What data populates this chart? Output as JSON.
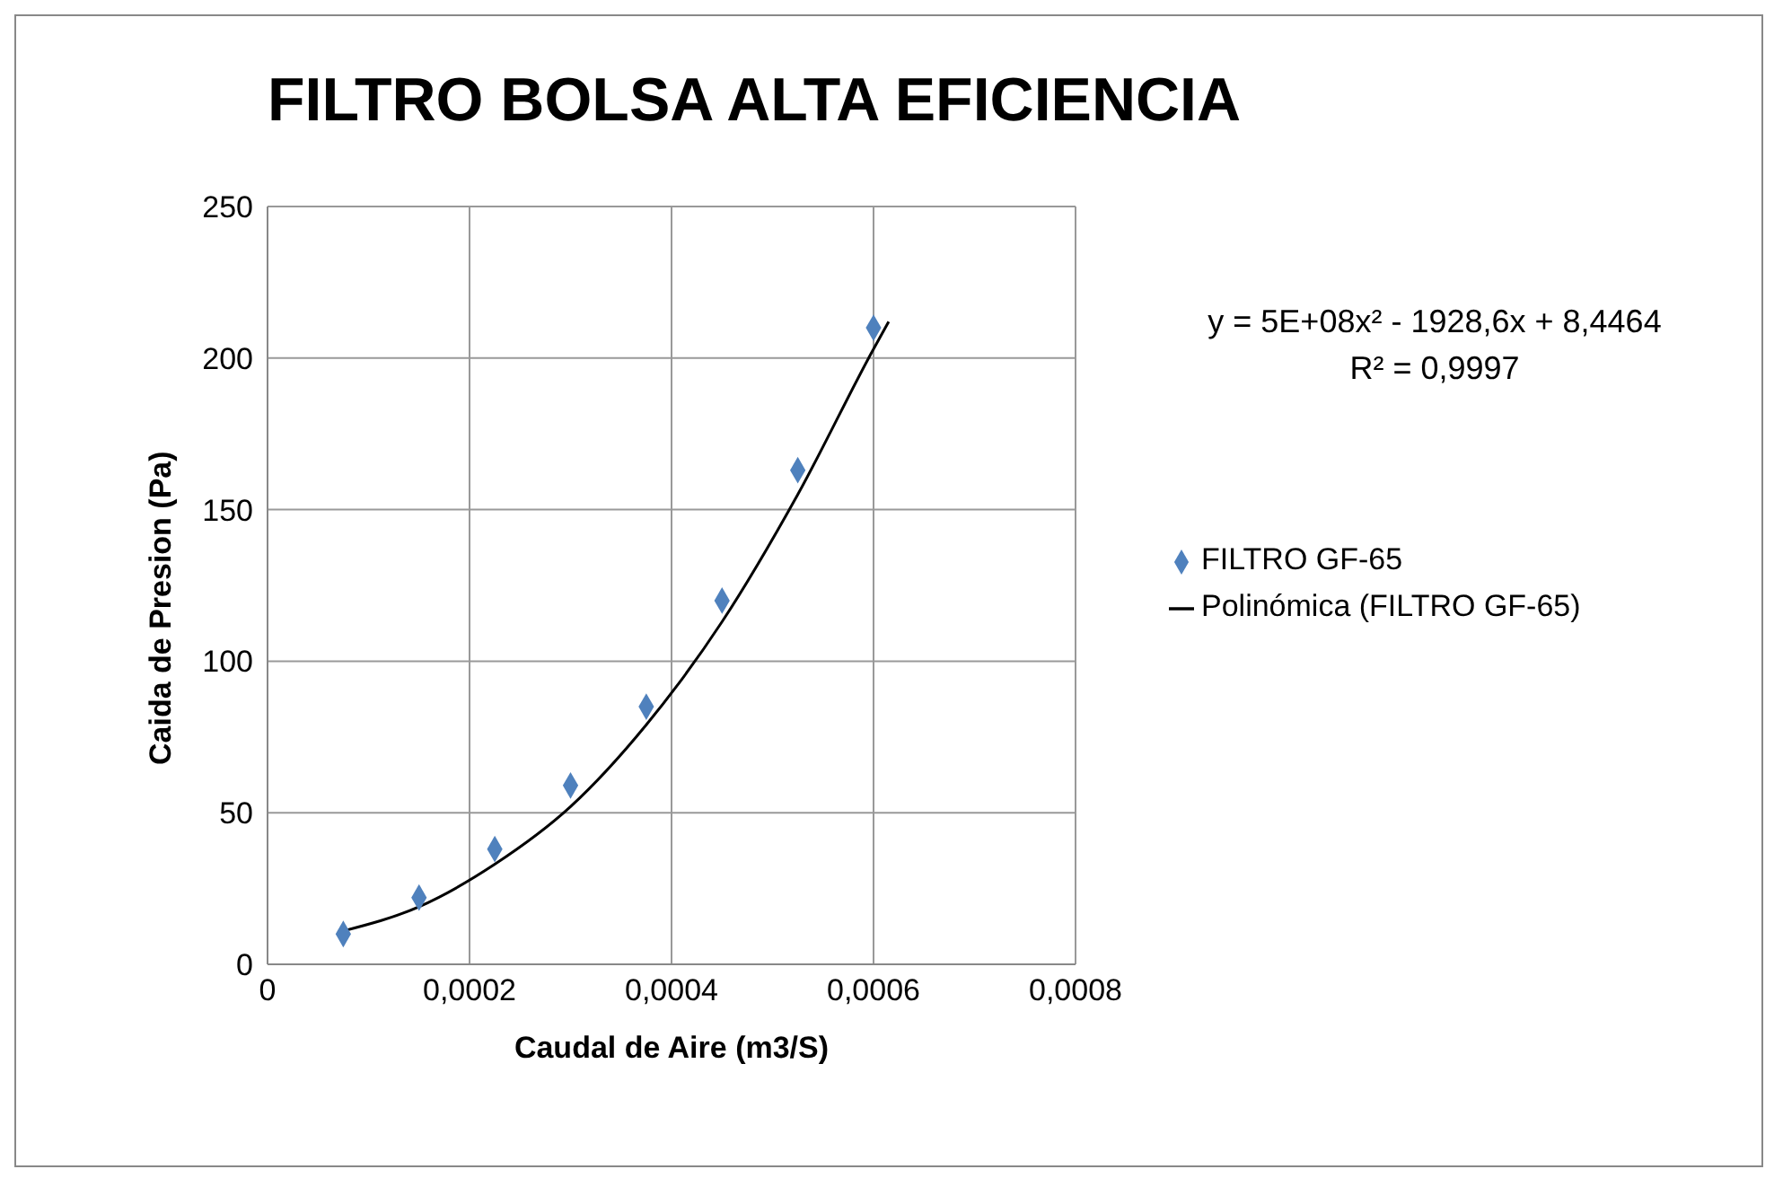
{
  "chart_data": {
    "type": "scatter",
    "title": "FILTRO BOLSA ALTA EFICIENCIA",
    "xlabel": "Caudal de Aire  (m3/S)",
    "ylabel": "Caida de Presion (Pa)",
    "xlim": [
      0,
      0.0008
    ],
    "xticks": [
      {
        "value": 0,
        "label": "0"
      },
      {
        "value": 0.0002,
        "label": "0,0002"
      },
      {
        "value": 0.0004,
        "label": "0,0004"
      },
      {
        "value": 0.0006,
        "label": "0,0006"
      },
      {
        "value": 0.0008,
        "label": "0,0008"
      }
    ],
    "ylim": [
      0,
      250
    ],
    "yticks": [
      0,
      50,
      100,
      150,
      200,
      250
    ],
    "grid": true,
    "legend": "right",
    "marker": "diamond",
    "annotations": [
      "y = 5E+08x² - 1928,6x + 8,4464",
      "R² = 0,9997"
    ],
    "series": [
      {
        "name": "FILTRO GF-65",
        "color": "#4f81bd",
        "x": [
          7.5e-05,
          0.00015,
          0.000225,
          0.0003,
          0.000375,
          0.00045,
          0.000525,
          0.0006
        ],
        "values": [
          10,
          22,
          38,
          59,
          85,
          120,
          163,
          210
        ]
      },
      {
        "name": "Polinómica (FILTRO GF-65)",
        "type": "line",
        "color": "#000000",
        "line_style": "solid",
        "marker": "none",
        "x": [
          7.5e-05,
          0.00015,
          0.000225,
          0.0003,
          0.000375,
          0.00045,
          0.000525,
          0.0006,
          0.000615
        ],
        "values": [
          11,
          19,
          33,
          52,
          79,
          113,
          155,
          203,
          212
        ]
      }
    ]
  }
}
